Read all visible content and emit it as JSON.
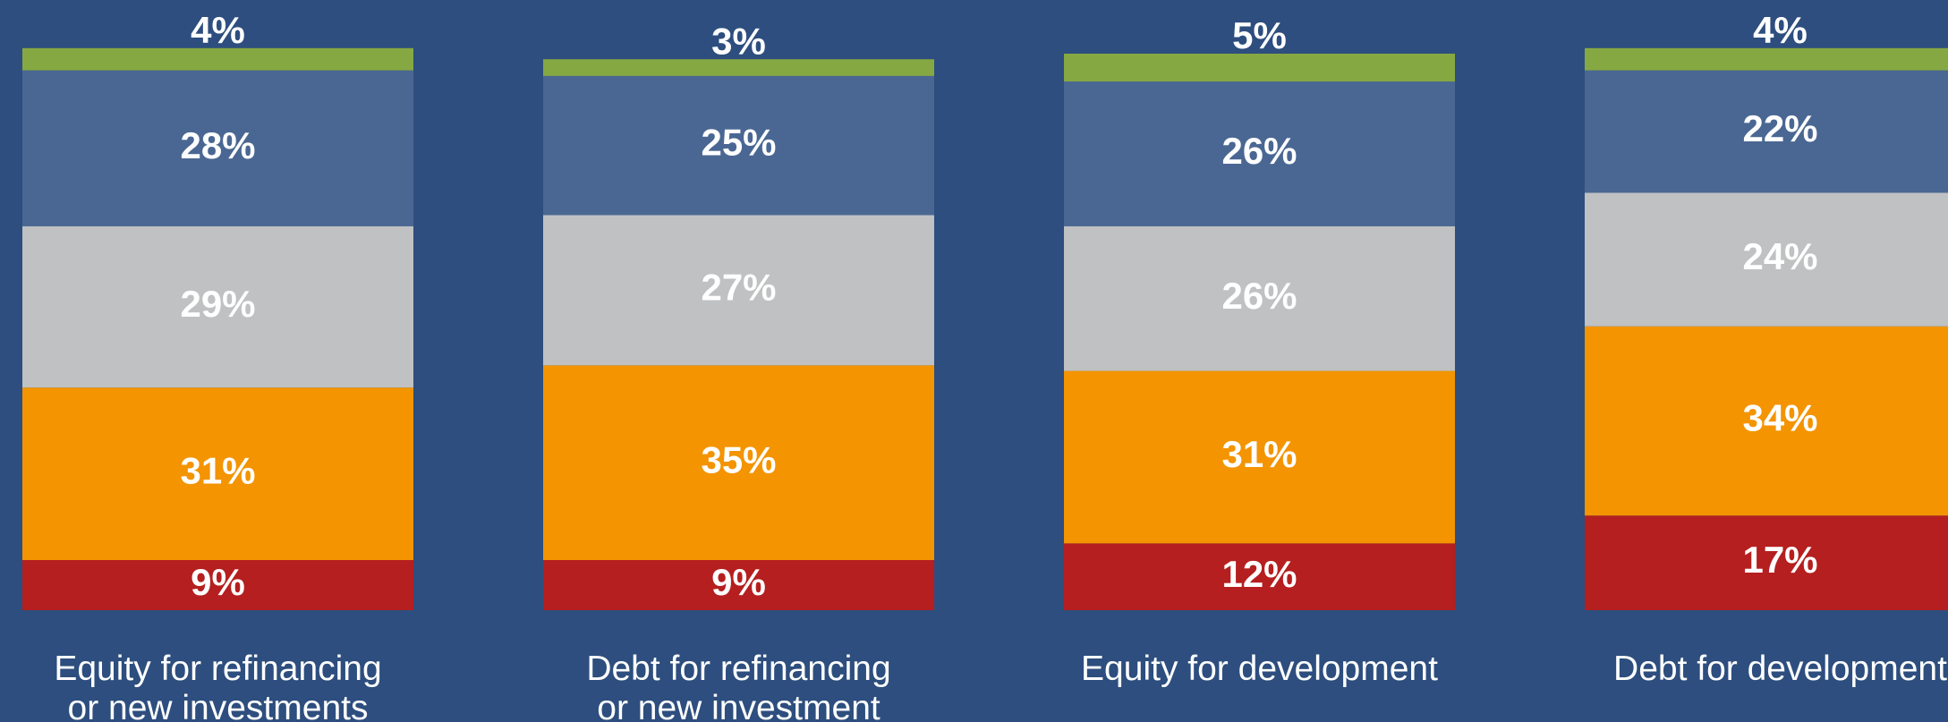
{
  "chart_data": {
    "type": "stacked_bar",
    "categories": [
      "Equity for refinancing\nor new investments",
      "Debt for refinancing\nor new investment",
      "Equity for development",
      "Debt for development"
    ],
    "series": [
      {
        "color": "#b51f1f",
        "values": [
          9,
          9,
          12,
          17
        ],
        "value_labels": [
          "9%",
          "9%",
          "12%",
          "17%"
        ]
      },
      {
        "color": "#f39400",
        "values": [
          31,
          35,
          31,
          34
        ],
        "value_labels": [
          "31%",
          "35%",
          "31%",
          "34%"
        ]
      },
      {
        "color": "#bfc1c2",
        "values": [
          29,
          27,
          26,
          24
        ],
        "value_labels": [
          "29%",
          "27%",
          "26%",
          "24%"
        ]
      },
      {
        "color": "#4a6793",
        "values": [
          28,
          25,
          26,
          22
        ],
        "value_labels": [
          "28%",
          "25%",
          "26%",
          "22%"
        ]
      },
      {
        "color": "#86a843",
        "values": [
          4,
          3,
          5,
          4
        ],
        "value_labels": [
          "4%",
          "3%",
          "5%",
          "4%"
        ]
      }
    ],
    "ylim": [
      0,
      100
    ]
  }
}
